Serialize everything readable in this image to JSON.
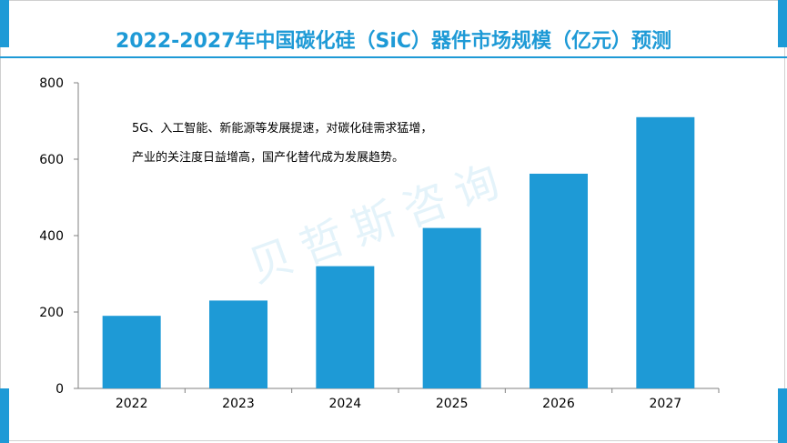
{
  "title": "2022-2027年中国碳化硅（SiC）器件市场规模（亿元）预测",
  "note_lines": [
    "5G、入工智能、新能源等发展提速，对碳化硅需求猛增，",
    "产业的关注度日益增高，国产化替代成为发展趋势。"
  ],
  "watermark": "贝哲斯咨询",
  "colors": {
    "accent": "#1e9ad6",
    "bar": "#1e9ad6"
  },
  "chart_data": {
    "type": "bar",
    "categories": [
      "2022",
      "2023",
      "2024",
      "2025",
      "2026",
      "2027"
    ],
    "values": [
      190,
      230,
      320,
      420,
      562,
      710
    ],
    "ylim": [
      0,
      800
    ],
    "yticks": [
      0,
      200,
      400,
      600,
      800
    ],
    "grid": false,
    "title": "2022-2027年中国碳化硅（SiC）器件市场规模（亿元）预测"
  }
}
